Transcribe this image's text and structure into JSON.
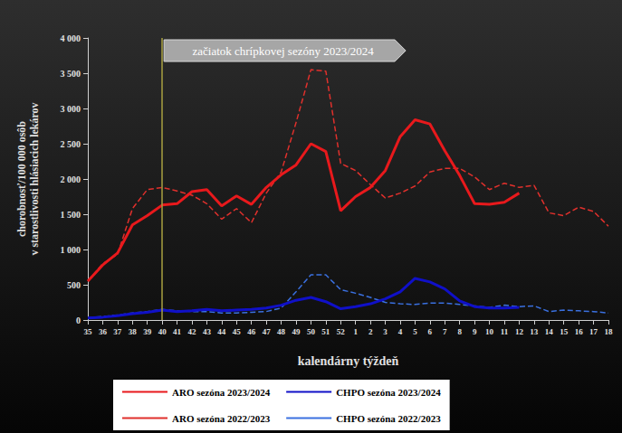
{
  "chart_data": {
    "type": "line",
    "x_label": "kalendárny týždeň",
    "y_label": "chorobnosť/100 000 osôb\nv starostlivosti hlásiacich lekárov",
    "categories": [
      "35",
      "36",
      "37",
      "38",
      "39",
      "40",
      "41",
      "42",
      "43",
      "44",
      "45",
      "46",
      "47",
      "48",
      "49",
      "50",
      "51",
      "52",
      "1",
      "2",
      "3",
      "4",
      "5",
      "6",
      "7",
      "8",
      "9",
      "10",
      "11",
      "12",
      "13",
      "14",
      "15",
      "16",
      "17",
      "18"
    ],
    "ylim": [
      0,
      4000
    ],
    "yticks": [
      0,
      500,
      {
        "value": 1000,
        "label": "1 000"
      },
      {
        "value": 1500,
        "label": "1 500"
      },
      {
        "value": 2000,
        "label": "2 000"
      },
      {
        "value": 2500,
        "label": "2 500"
      },
      {
        "value": 3000,
        "label": "3 000"
      },
      {
        "value": 3500,
        "label": "3 500"
      },
      {
        "value": 4000,
        "label": "4 000"
      }
    ],
    "grid": false,
    "legend": "bottom",
    "annotations": [
      {
        "text": "začiatok chrípkovej sezóny 2023/2024",
        "x": "40"
      }
    ],
    "series": [
      {
        "name": "ARO sezóna 2023/2024",
        "color": "#e8191c",
        "line_style": "solid",
        "values": [
          550,
          780,
          950,
          1350,
          1480,
          1630,
          1650,
          1820,
          1850,
          1620,
          1760,
          1640,
          1880,
          2060,
          2200,
          2500,
          2390,
          1550,
          1750,
          1880,
          2120,
          2600,
          2840,
          2780,
          2400,
          2050,
          1650,
          1640,
          1670,
          1800,
          null,
          null,
          null,
          null,
          null,
          null
        ]
      },
      {
        "name": "CHPO sezóna 2023/2024",
        "color": "#1010c8",
        "line_style": "solid",
        "values": [
          30,
          40,
          60,
          90,
          110,
          140,
          120,
          130,
          150,
          130,
          140,
          150,
          170,
          210,
          280,
          320,
          260,
          160,
          190,
          230,
          300,
          400,
          590,
          540,
          440,
          270,
          190,
          170,
          170,
          180,
          null,
          null,
          null,
          null,
          null,
          null
        ]
      },
      {
        "name": "ARO sezóna 2022/2023",
        "color": "#e0302c",
        "line_style": "dashed",
        "values": [
          550,
          800,
          930,
          1580,
          1850,
          1880,
          1830,
          1770,
          1650,
          1430,
          1580,
          1380,
          1800,
          2100,
          2800,
          3550,
          3530,
          2220,
          2120,
          1920,
          1730,
          1800,
          1900,
          2100,
          2150,
          2150,
          2030,
          1850,
          1940,
          1880,
          1910,
          1520,
          1480,
          1600,
          1540,
          1330
        ]
      },
      {
        "name": "CHPO sezóna 2022/2023",
        "color": "#3a70e0",
        "line_style": "dashed",
        "values": [
          30,
          50,
          70,
          100,
          120,
          150,
          130,
          120,
          120,
          100,
          100,
          110,
          120,
          170,
          400,
          640,
          640,
          430,
          380,
          320,
          250,
          230,
          220,
          240,
          240,
          220,
          200,
          180,
          210,
          190,
          200,
          120,
          140,
          130,
          120,
          100
        ]
      }
    ]
  }
}
